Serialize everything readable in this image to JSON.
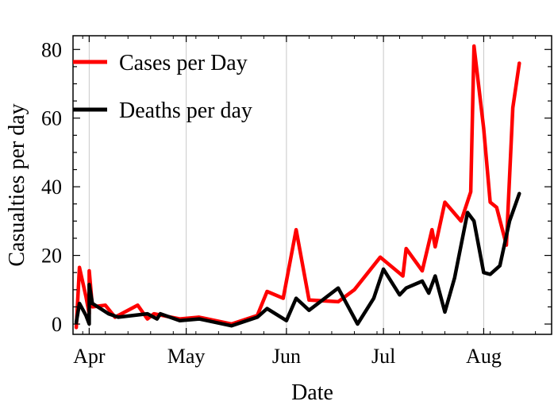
{
  "chart_data": {
    "type": "line",
    "xlabel": "Date",
    "ylabel": "Casualties per day",
    "ylim": [
      -3,
      84
    ],
    "xlim": [
      "2020-03-27",
      "2020-08-22"
    ],
    "x_ticks": [
      {
        "label": "Apr",
        "date": "2020-04-01"
      },
      {
        "label": "May",
        "date": "2020-05-01"
      },
      {
        "label": "Jun",
        "date": "2020-06-01"
      },
      {
        "label": "Jul",
        "date": "2020-07-01"
      },
      {
        "label": "Aug",
        "date": "2020-08-01"
      }
    ],
    "y_ticks": [
      0,
      20,
      40,
      60,
      80
    ],
    "vertical_grid": true,
    "legend_position": "top-left",
    "series": [
      {
        "name": "Cases per Day",
        "color": "#ff0000",
        "points": [
          [
            "2020-03-28",
            -1
          ],
          [
            "2020-03-29",
            16.5
          ],
          [
            "2020-03-31",
            8
          ],
          [
            "2020-04-01",
            3
          ],
          [
            "2020-04-01",
            15.5
          ],
          [
            "2020-04-02",
            5
          ],
          [
            "2020-04-06",
            5.5
          ],
          [
            "2020-04-09",
            2
          ],
          [
            "2020-04-16",
            5.5
          ],
          [
            "2020-04-19",
            1.5
          ],
          [
            "2020-04-21",
            3
          ],
          [
            "2020-04-29",
            1.5
          ],
          [
            "2020-05-05",
            2
          ],
          [
            "2020-05-15",
            0
          ],
          [
            "2020-05-23",
            2.5
          ],
          [
            "2020-05-26",
            9.5
          ],
          [
            "2020-05-31",
            7.5
          ],
          [
            "2020-06-04",
            27.5
          ],
          [
            "2020-06-08",
            7
          ],
          [
            "2020-06-17",
            6.5
          ],
          [
            "2020-06-22",
            10
          ],
          [
            "2020-06-30",
            19.5
          ],
          [
            "2020-07-07",
            14
          ],
          [
            "2020-07-08",
            22
          ],
          [
            "2020-07-13",
            15.5
          ],
          [
            "2020-07-16",
            27.5
          ],
          [
            "2020-07-17",
            22.5
          ],
          [
            "2020-07-20",
            35.5
          ],
          [
            "2020-07-25",
            30
          ],
          [
            "2020-07-28",
            38.5
          ],
          [
            "2020-07-29",
            81
          ],
          [
            "2020-08-01",
            57
          ],
          [
            "2020-08-03",
            35.5
          ],
          [
            "2020-08-05",
            34
          ],
          [
            "2020-08-08",
            23
          ],
          [
            "2020-08-10",
            63
          ],
          [
            "2020-08-12",
            76
          ]
        ]
      },
      {
        "name": "Deaths per day",
        "color": "#000000",
        "points": [
          [
            "2020-03-28",
            0.5
          ],
          [
            "2020-03-29",
            6
          ],
          [
            "2020-03-31",
            2.5
          ],
          [
            "2020-04-01",
            0
          ],
          [
            "2020-04-01",
            11.5
          ],
          [
            "2020-04-02",
            6
          ],
          [
            "2020-04-07",
            3
          ],
          [
            "2020-04-10",
            2
          ],
          [
            "2020-04-19",
            3
          ],
          [
            "2020-04-22",
            1.5
          ],
          [
            "2020-04-23",
            3
          ],
          [
            "2020-04-29",
            1
          ],
          [
            "2020-05-05",
            1.5
          ],
          [
            "2020-05-15",
            -0.5
          ],
          [
            "2020-05-23",
            2
          ],
          [
            "2020-05-26",
            4.5
          ],
          [
            "2020-06-01",
            1
          ],
          [
            "2020-06-04",
            7.5
          ],
          [
            "2020-06-08",
            4
          ],
          [
            "2020-06-17",
            10.5
          ],
          [
            "2020-06-23",
            0
          ],
          [
            "2020-06-28",
            7.5
          ],
          [
            "2020-07-01",
            16
          ],
          [
            "2020-07-06",
            8.5
          ],
          [
            "2020-07-08",
            10.5
          ],
          [
            "2020-07-13",
            12.5
          ],
          [
            "2020-07-15",
            9
          ],
          [
            "2020-07-17",
            14
          ],
          [
            "2020-07-20",
            3.5
          ],
          [
            "2020-07-23",
            13.5
          ],
          [
            "2020-07-27",
            32.5
          ],
          [
            "2020-07-29",
            30
          ],
          [
            "2020-08-01",
            15
          ],
          [
            "2020-08-03",
            14.5
          ],
          [
            "2020-08-06",
            17
          ],
          [
            "2020-08-09",
            30
          ],
          [
            "2020-08-12",
            38
          ]
        ]
      }
    ]
  }
}
